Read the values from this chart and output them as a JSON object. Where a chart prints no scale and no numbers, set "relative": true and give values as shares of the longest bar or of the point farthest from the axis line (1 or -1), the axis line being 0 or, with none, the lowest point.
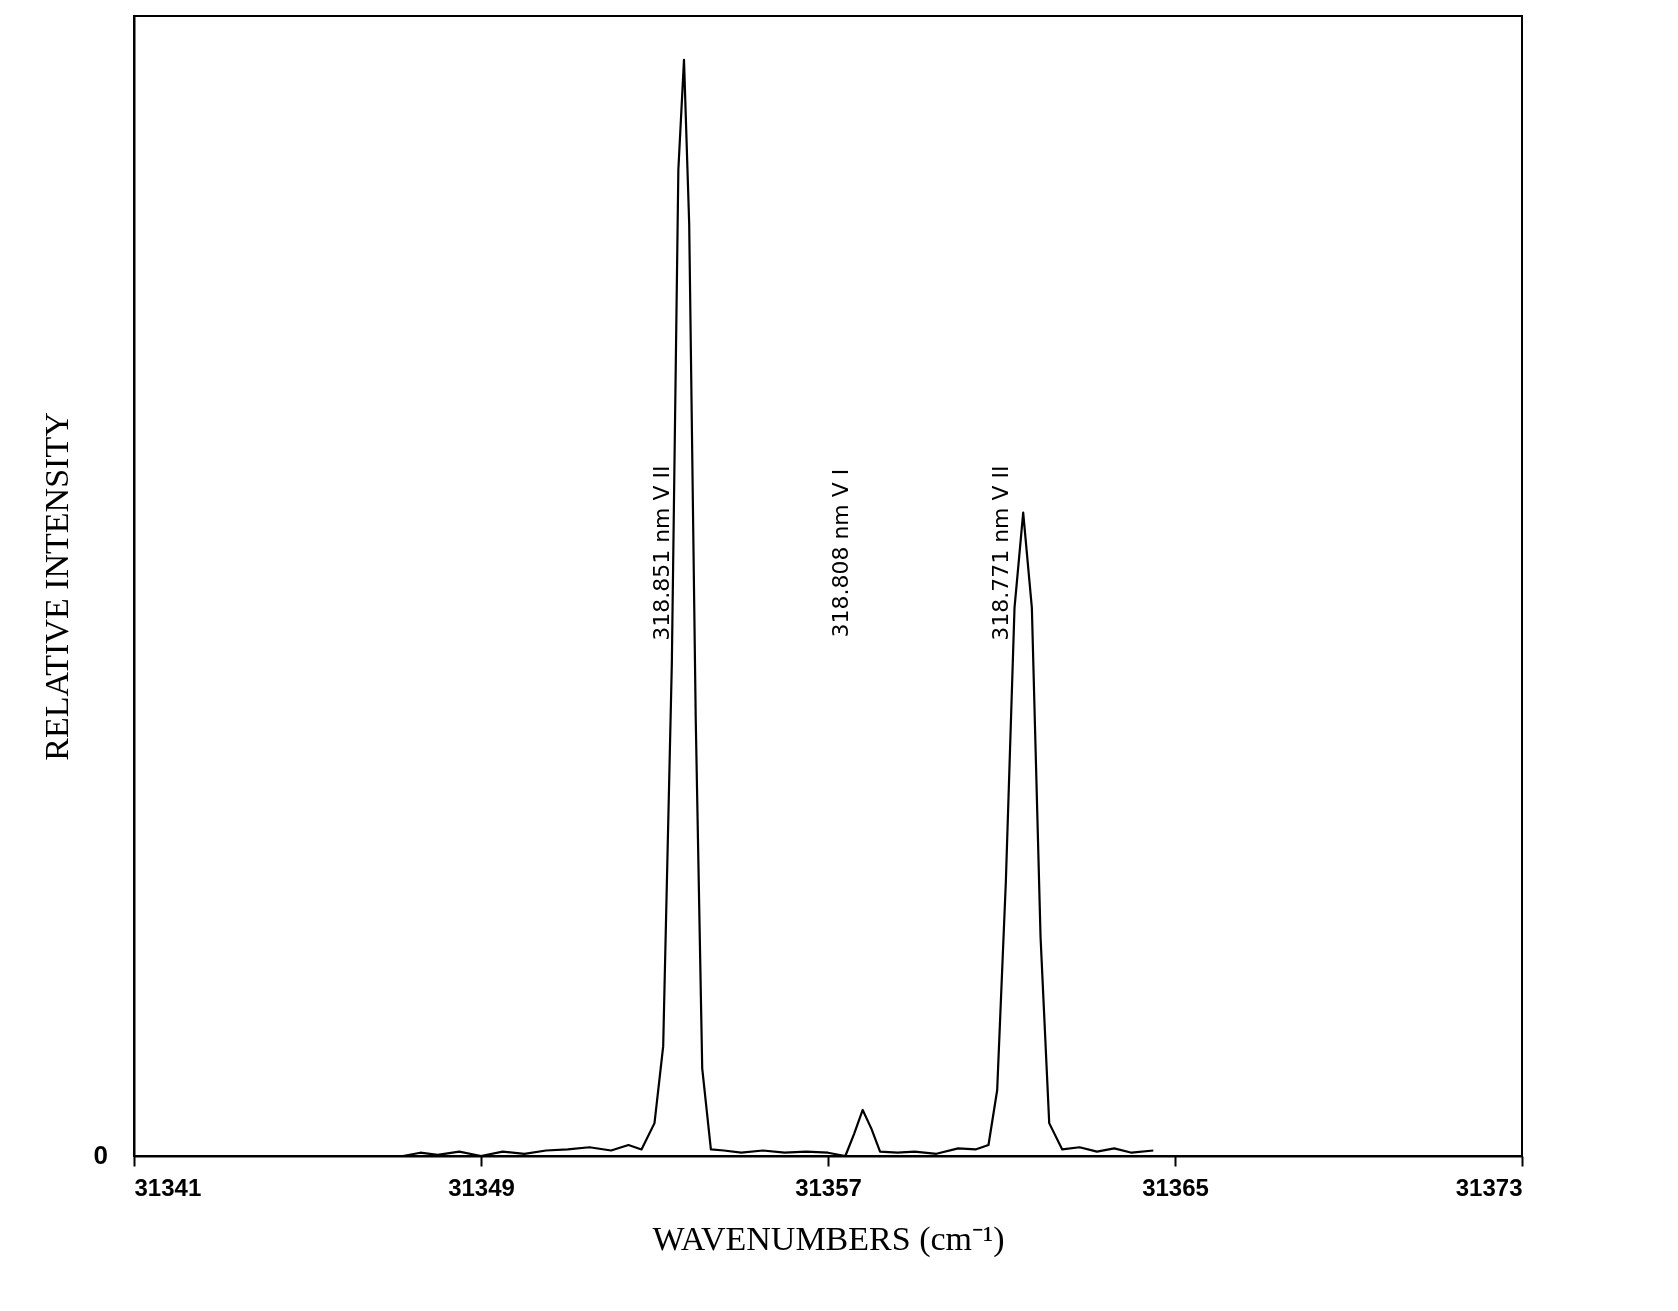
{
  "chart_data": {
    "type": "line",
    "xlabel": "WAVENUMBERS (cm⁻¹)",
    "ylabel": "RELATIVE INTENSITY",
    "relative": true,
    "xlim": [
      31341,
      31373
    ],
    "xticks": [
      {
        "value": 31341,
        "label": "31341"
      },
      {
        "value": 31349,
        "label": "31349"
      },
      {
        "value": 31357,
        "label": "31357"
      },
      {
        "value": 31365,
        "label": "31365"
      },
      {
        "value": 31373,
        "label": "31373"
      }
    ],
    "grid": false,
    "color": "#000000",
    "x": [
      31347.2,
      31347.6,
      31348.0,
      31348.5,
      31349.0,
      31349.5,
      31350.0,
      31350.5,
      31351.0,
      31351.5,
      31352.0,
      31352.4,
      31352.7,
      31353.0,
      31353.2,
      31353.4,
      31353.55,
      31353.68,
      31353.8,
      31353.95,
      31354.1,
      31354.3,
      31354.6,
      31355.0,
      31355.5,
      31356.0,
      31356.5,
      31357.0,
      31357.4,
      31357.6,
      31357.8,
      31358.0,
      31358.2,
      31358.6,
      31359.0,
      31359.5,
      31360.0,
      31360.4,
      31360.7,
      31360.9,
      31361.1,
      31361.3,
      31361.5,
      31361.7,
      31361.9,
      31362.1,
      31362.4,
      31362.8,
      31363.2,
      31363.6,
      31364.0,
      31364.5
    ],
    "values": [
      0,
      0.003,
      0.001,
      0.004,
      0,
      0.004,
      0.002,
      0.005,
      0.006,
      0.008,
      0.005,
      0.01,
      0.006,
      0.03,
      0.1,
      0.45,
      0.9,
      1.0,
      0.85,
      0.4,
      0.08,
      0.006,
      0.005,
      0.003,
      0.005,
      0.003,
      0.004,
      0.003,
      0,
      0.02,
      0.042,
      0.025,
      0.004,
      0.003,
      0.004,
      0.002,
      0.007,
      0.006,
      0.01,
      0.06,
      0.25,
      0.5,
      0.587,
      0.5,
      0.2,
      0.03,
      0.006,
      0.008,
      0.004,
      0.007,
      0.003,
      0.005
    ],
    "annotations": [
      "0",
      "318.851 nm     V II",
      "318.808 nm     V I",
      "318.771 nm     V II"
    ]
  }
}
